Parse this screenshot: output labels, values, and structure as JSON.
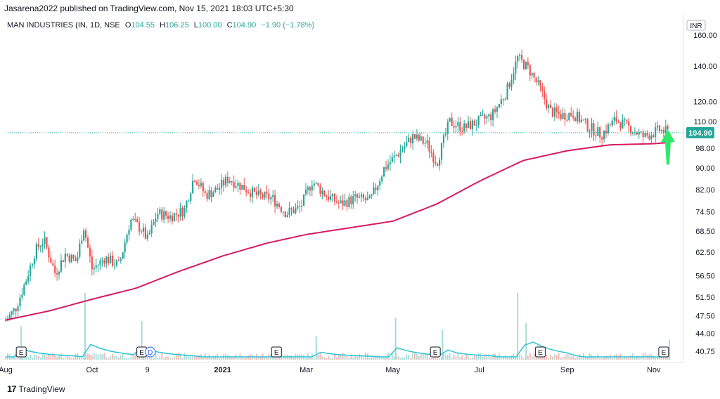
{
  "header": {
    "publisher": "Jasarena2022 published on TradingView.com, Nov 15, 2021 18:03 UTC+5:30"
  },
  "legend": {
    "symbol": "MAN INDUSTRIES (IN, 1D, NSE",
    "open_label": "O",
    "open": "104.55",
    "high_label": "H",
    "high": "106.25",
    "low_label": "L",
    "low": "100.00",
    "close_label": "C",
    "close": "104.90",
    "change": "−1.90 (−1.78%)"
  },
  "currency_label": "INR",
  "last_price_label": "104.90",
  "brand": {
    "text": "TradingView",
    "logo": "17"
  },
  "colors": {
    "up": "#26a69a",
    "down": "#ef5350",
    "ma": "#d81b60",
    "volume_ma": "#2ec4d6",
    "arrow": "#2ee86a"
  },
  "chart_data": {
    "type": "candlestick",
    "y_scale": "log",
    "ylim": [
      39.5,
      160
    ],
    "y_ticks": [
      "160.00",
      "140.00",
      "120.00",
      "110.00",
      "98.00",
      "90.00",
      "82.00",
      "74.50",
      "68.50",
      "62.50",
      "56.50",
      "51.50",
      "47.50",
      "44.00",
      "40.75"
    ],
    "y_tick_values": [
      160,
      140,
      120,
      110,
      98,
      90,
      82,
      74.5,
      68.5,
      62.5,
      56.5,
      51.5,
      47.5,
      44,
      40.75
    ],
    "x_range": [
      "2020-08-01",
      "2021-11-15"
    ],
    "x_ticks": [
      {
        "label": "Aug",
        "date": "2020-08-01",
        "bold": false
      },
      {
        "label": "Oct",
        "date": "2020-10-01",
        "bold": false
      },
      {
        "label": "9",
        "date": "2020-11-09",
        "bold": false
      },
      {
        "label": "2021",
        "date": "2021-01-01",
        "bold": true
      },
      {
        "label": "Mar",
        "date": "2021-03-01",
        "bold": false
      },
      {
        "label": "May",
        "date": "2021-05-01",
        "bold": false
      },
      {
        "label": "Jul",
        "date": "2021-07-01",
        "bold": false
      },
      {
        "label": "Sep",
        "date": "2021-09-01",
        "bold": false
      },
      {
        "label": "Nov",
        "date": "2021-11-01",
        "bold": false
      }
    ],
    "last_price": 104.9,
    "price_path": [
      [
        "2020-08-01",
        46.5
      ],
      [
        "2020-08-08",
        49
      ],
      [
        "2020-08-15",
        55
      ],
      [
        "2020-08-22",
        63
      ],
      [
        "2020-08-28",
        66
      ],
      [
        "2020-09-05",
        57
      ],
      [
        "2020-09-12",
        62
      ],
      [
        "2020-09-20",
        60
      ],
      [
        "2020-09-25",
        70
      ],
      [
        "2020-10-01",
        58
      ],
      [
        "2020-10-10",
        61
      ],
      [
        "2020-10-20",
        59
      ],
      [
        "2020-10-28",
        72
      ],
      [
        "2020-11-05",
        69
      ],
      [
        "2020-11-09",
        66
      ],
      [
        "2020-11-16",
        74
      ],
      [
        "2020-11-25",
        73
      ],
      [
        "2020-12-05",
        75
      ],
      [
        "2020-12-12",
        87
      ],
      [
        "2020-12-20",
        80
      ],
      [
        "2020-12-28",
        82
      ],
      [
        "2021-01-05",
        86
      ],
      [
        "2021-01-15",
        83
      ],
      [
        "2021-01-25",
        80
      ],
      [
        "2021-02-05",
        79
      ],
      [
        "2021-02-15",
        74
      ],
      [
        "2021-02-25",
        76
      ],
      [
        "2021-03-05",
        85
      ],
      [
        "2021-03-15",
        80
      ],
      [
        "2021-03-25",
        77
      ],
      [
        "2021-04-05",
        79
      ],
      [
        "2021-04-15",
        78
      ],
      [
        "2021-04-25",
        90
      ],
      [
        "2021-05-05",
        96
      ],
      [
        "2021-05-15",
        103
      ],
      [
        "2021-05-25",
        100
      ],
      [
        "2021-06-01",
        92
      ],
      [
        "2021-06-10",
        110
      ],
      [
        "2021-06-20",
        107
      ],
      [
        "2021-06-30",
        110
      ],
      [
        "2021-07-10",
        113
      ],
      [
        "2021-07-20",
        125
      ],
      [
        "2021-07-28",
        145
      ],
      [
        "2021-08-05",
        138
      ],
      [
        "2021-08-12",
        128
      ],
      [
        "2021-08-20",
        115
      ],
      [
        "2021-08-28",
        113
      ],
      [
        "2021-09-05",
        114
      ],
      [
        "2021-09-15",
        108
      ],
      [
        "2021-09-25",
        104
      ],
      [
        "2021-10-05",
        111
      ],
      [
        "2021-10-15",
        107
      ],
      [
        "2021-10-25",
        103
      ],
      [
        "2021-11-05",
        106
      ],
      [
        "2021-11-12",
        104.9
      ]
    ],
    "ma_path": [
      [
        "2020-08-01",
        46.6
      ],
      [
        "2020-09-01",
        48.5
      ],
      [
        "2020-10-01",
        51
      ],
      [
        "2020-11-01",
        53.5
      ],
      [
        "2020-12-01",
        57.5
      ],
      [
        "2021-01-01",
        61.5
      ],
      [
        "2021-02-01",
        65
      ],
      [
        "2021-03-01",
        67.5
      ],
      [
        "2021-04-01",
        69.5
      ],
      [
        "2021-05-01",
        71.5
      ],
      [
        "2021-06-01",
        77
      ],
      [
        "2021-07-01",
        85
      ],
      [
        "2021-08-01",
        93
      ],
      [
        "2021-09-01",
        97
      ],
      [
        "2021-10-01",
        99.5
      ],
      [
        "2021-11-01",
        100
      ],
      [
        "2021-11-12",
        100.5
      ]
    ],
    "volume_spikes": [
      [
        "2020-08-12",
        0.5
      ],
      [
        "2020-09-26",
        1.0
      ],
      [
        "2020-11-05",
        0.58
      ],
      [
        "2021-03-08",
        0.35
      ],
      [
        "2021-05-03",
        0.62
      ],
      [
        "2021-06-05",
        0.45
      ],
      [
        "2021-07-28",
        1.0
      ],
      [
        "2021-08-03",
        0.55
      ],
      [
        "2021-11-12",
        0.3
      ]
    ],
    "events": [
      {
        "label": "E",
        "date": "2020-08-12"
      },
      {
        "label": "E",
        "date": "2020-11-05"
      },
      {
        "label": "D",
        "date": "2020-11-11"
      },
      {
        "label": "E",
        "date": "2021-02-08"
      },
      {
        "label": "E",
        "date": "2021-05-31"
      },
      {
        "label": "E",
        "date": "2021-08-13"
      },
      {
        "label": "E",
        "date": "2021-11-08"
      }
    ],
    "annotation": {
      "type": "arrow-up",
      "date": "2021-11-12",
      "price": 93
    }
  }
}
